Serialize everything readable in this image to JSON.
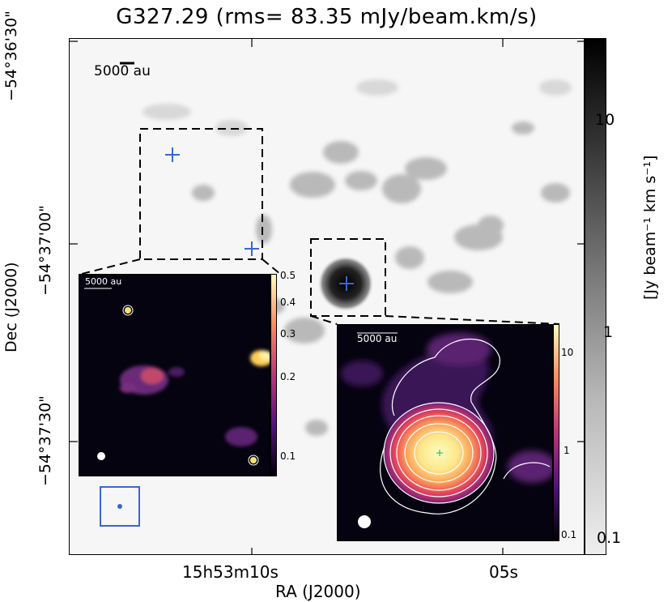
{
  "title": "G327.29 (rms= 83.35 mJy/beam.km/s)",
  "scalebar_label": "5000 au",
  "dec_labels": [
    "−54°36'30\"",
    "−54°37'00\"",
    "−54°37'30\""
  ],
  "ra_labels": {
    "main": "15h53m10s",
    "minor": "05s"
  },
  "xaxis_title": "RA (J2000)",
  "yaxis_title": "Dec (J2000)",
  "colorbar": {
    "label": "[Jy beam⁻¹ km s⁻¹]",
    "ticks": [
      "10",
      "1",
      "0.1"
    ]
  },
  "inset_left": {
    "scalebar_label": "5000 au",
    "cbar_ticks": [
      "0.5",
      "0.4",
      "0.3",
      "0.2",
      "0.1"
    ]
  },
  "inset_right": {
    "scalebar_label": "5000 au",
    "cbar_ticks": [
      "10",
      "1",
      "0.1"
    ]
  },
  "colors": {
    "marker": "#3a66d4",
    "inset_bg": "#050310"
  }
}
